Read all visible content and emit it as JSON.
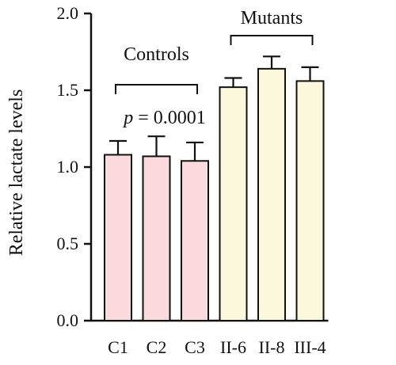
{
  "chart_data": {
    "type": "bar",
    "ylabel": "Relative lactate levels",
    "ylim": [
      0,
      2.0
    ],
    "yticks": [
      "0.0",
      "0.5",
      "1.0",
      "1.5",
      "2.0"
    ],
    "categories": [
      "C1",
      "C2",
      "C3",
      "II-6",
      "II-8",
      "III-4"
    ],
    "values": [
      1.08,
      1.07,
      1.04,
      1.52,
      1.64,
      1.56
    ],
    "errors": [
      0.09,
      0.13,
      0.12,
      0.06,
      0.08,
      0.09
    ],
    "colors": [
      "#fadadd",
      "#fadadd",
      "#fadadd",
      "#fcf8dc",
      "#fcf8dc",
      "#fcf8dc"
    ],
    "groups": [
      {
        "label": "Controls",
        "from": 0,
        "to": 2
      },
      {
        "label": "Mutants",
        "from": 3,
        "to": 5
      }
    ],
    "annotation": {
      "italic": "p",
      "rest": " = 0.0001"
    }
  }
}
